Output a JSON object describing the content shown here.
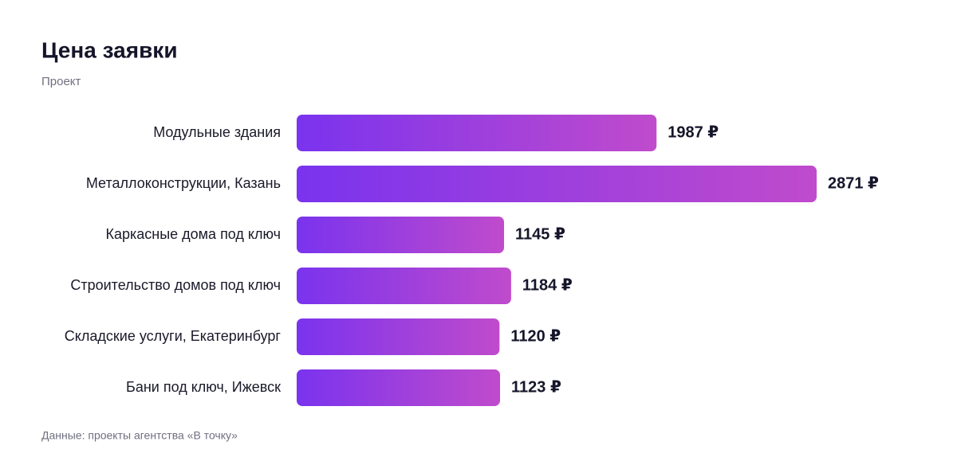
{
  "chart_data": {
    "type": "bar",
    "orientation": "horizontal",
    "title": "Цена заявки",
    "subtitle": "Проект",
    "categories": [
      "Модульные здания",
      "Металлоконструкции, Казань",
      "Каркасные дома под ключ",
      "Строительство домов под ключ",
      "Складские услуги, Екатеринбург",
      "Бани под ключ, Ижевск"
    ],
    "values": [
      1987,
      2871,
      1145,
      1184,
      1120,
      1123
    ],
    "value_labels": [
      "1987 ₽",
      "2871 ₽",
      "1145 ₽",
      "1184 ₽",
      "1120 ₽",
      "1123 ₽"
    ],
    "colors": [
      "#7a33ee",
      "#c04bcc"
    ],
    "source": "Данные: проекты агентства «В точку»"
  }
}
